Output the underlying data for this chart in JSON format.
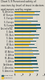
{
  "title": "Chart 5.9 Perceived safety of vaccines by level of trust in doctors and nurses and by region",
  "categories": [
    "N. America",
    "W. Europe",
    "E. Europe",
    "S. Europe",
    "N. Europe",
    "Australia/NZ",
    "E. Asia",
    "SE. Asia",
    "S. Asia",
    "C. Asia",
    "W. Asia",
    "N. Africa",
    "W. Africa",
    "E. Africa",
    "M. Africa",
    "S. Africa",
    "Caribbean",
    "C. America",
    "S. America"
  ],
  "high_trust": [
    85,
    83,
    62,
    78,
    87,
    88,
    73,
    83,
    79,
    72,
    68,
    76,
    80,
    82,
    72,
    74,
    78,
    79,
    80
  ],
  "low_trust": [
    68,
    62,
    42,
    55,
    72,
    74,
    55,
    68,
    62,
    52,
    48,
    58,
    62,
    65,
    55,
    55,
    60,
    62,
    63
  ],
  "high_color": "#2d5f6b",
  "low_color": "#e8c040",
  "bg_color": "#dedad0",
  "xmax": 100,
  "legend_high": "High trust",
  "legend_low": "Low trust",
  "title_fontsize": 2.2,
  "tick_fontsize": 1.8
}
